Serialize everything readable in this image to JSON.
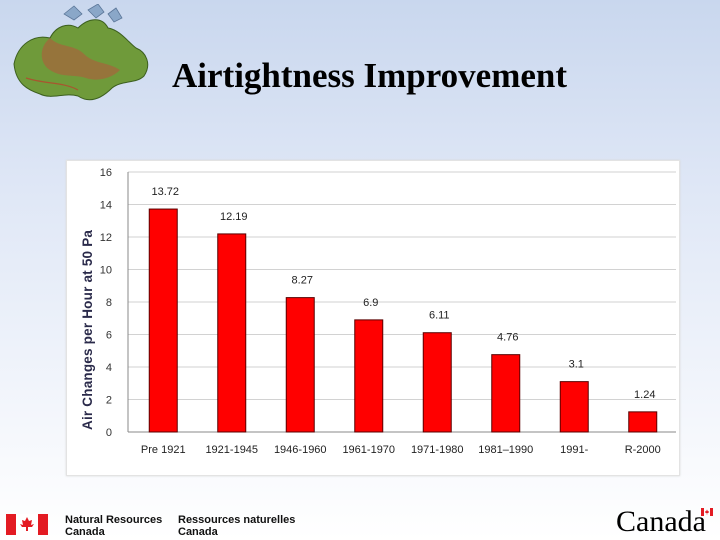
{
  "slide": {
    "title": "Airtightness Improvement"
  },
  "chart_data": {
    "type": "bar",
    "title": "",
    "xlabel": "",
    "ylabel": "Air Changes per Hour at 50 Pa",
    "categories": [
      "Pre 1921",
      "1921-1945",
      "1946-1960",
      "1961-1970",
      "1971-1980",
      "1981–1990",
      "1991-",
      "R-2000"
    ],
    "values": [
      13.72,
      12.19,
      8.27,
      6.9,
      6.11,
      4.76,
      3.1,
      1.24
    ],
    "value_labels": [
      "13.72",
      "12.19",
      "8.27",
      "6.9",
      "6.11",
      "4.76",
      "3.1",
      "1.24"
    ],
    "ylim": [
      0,
      16
    ],
    "yticks": [
      "0",
      "2",
      "4",
      "6",
      "8",
      "10",
      "12",
      "14",
      "16"
    ],
    "grid": true,
    "legend": "none",
    "bar_color": "#ff0000",
    "bar_edge_color": "#5a0000"
  },
  "footer": {
    "org_en_line1": "Natural Resources",
    "org_en_line2": "Canada",
    "org_fr_line1": "Ressources naturelles",
    "org_fr_line2": "Canada",
    "wordmark": "Canada",
    "flag_icon": "canada-flag-icon",
    "flag_color": "#e31b23"
  }
}
